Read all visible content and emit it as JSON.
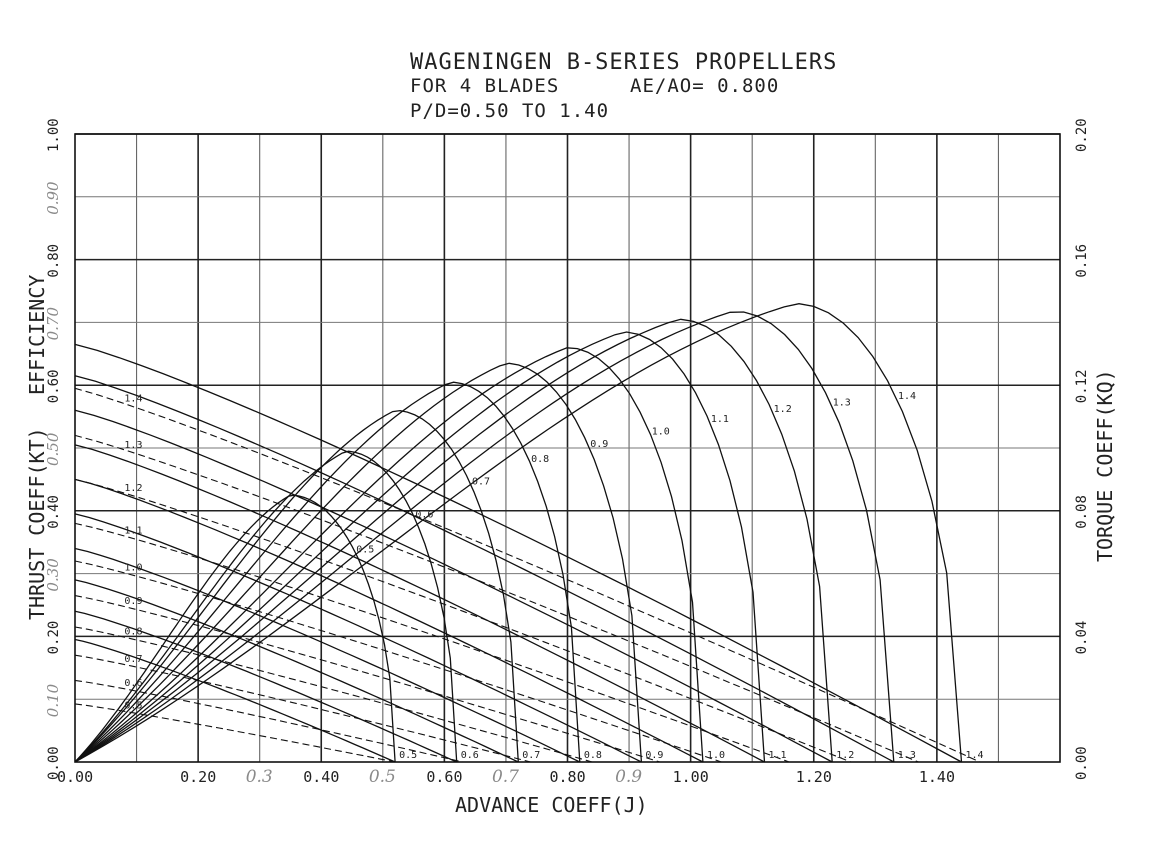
{
  "title": {
    "line1": "WAGENINGEN B-SERIES PROPELLERS",
    "line2_left": "FOR 4 BLADES",
    "line2_right": "AE/AO= 0.800",
    "line3": "P/D=0.50 TO 1.40"
  },
  "axes": {
    "x_label": "ADVANCE COEFF(J)",
    "y_left_label_lower": "THRUST COEFF(KT)",
    "y_left_label_upper": "EFFICIENCY",
    "y_right_label": "TORQUE COEFF(KQ)",
    "x_ticks": [
      "0.00",
      "0.20",
      "0.40",
      "0.60",
      "0.80",
      "1.00",
      "1.20",
      "1.40"
    ],
    "y_left_ticks": [
      "0.00",
      "0.20",
      "0.40",
      "0.60",
      "0.80",
      "1.00"
    ],
    "y_right_ticks": [
      "0.00",
      "0.04",
      "0.08",
      "0.12",
      "0.16",
      "0.20"
    ],
    "handwritten_x": [
      "0.3",
      "0.5",
      "0.7",
      "0.9"
    ],
    "handwritten_y": [
      "0.10",
      "0.30",
      "0.50",
      "0.70",
      "0.90"
    ]
  },
  "chart_data": {
    "type": "line",
    "title": "WAGENINGEN B-SERIES PROPELLERS",
    "xlabel": "ADVANCE COEFF(J)",
    "ylabel": "THRUST COEFF(KT) / EFFICIENCY",
    "y2label": "TORQUE COEFF(KQ)",
    "xlim": [
      0,
      1.6
    ],
    "ylim": [
      0,
      1.0
    ],
    "y2lim": [
      0,
      0.2
    ],
    "grid": true,
    "pitch_ratios": [
      0.5,
      0.6,
      0.7,
      0.8,
      0.9,
      1.0,
      1.1,
      1.2,
      1.3,
      1.4
    ],
    "pitch_labels": [
      "0.5",
      "0.6",
      "0.7",
      "0.8",
      "0.9",
      "1.0",
      "1.1",
      "1.2",
      "1.3",
      "1.4"
    ],
    "kt": [
      {
        "pd": 0.5,
        "kt0": 0.195,
        "j_zero": 0.52
      },
      {
        "pd": 0.6,
        "kt0": 0.24,
        "j_zero": 0.62
      },
      {
        "pd": 0.7,
        "kt0": 0.29,
        "j_zero": 0.72
      },
      {
        "pd": 0.8,
        "kt0": 0.34,
        "j_zero": 0.82
      },
      {
        "pd": 0.9,
        "kt0": 0.395,
        "j_zero": 0.92
      },
      {
        "pd": 1.0,
        "kt0": 0.45,
        "j_zero": 1.02
      },
      {
        "pd": 1.1,
        "kt0": 0.505,
        "j_zero": 1.12
      },
      {
        "pd": 1.2,
        "kt0": 0.56,
        "j_zero": 1.23
      },
      {
        "pd": 1.3,
        "kt0": 0.615,
        "j_zero": 1.33
      },
      {
        "pd": 1.4,
        "kt0": 0.665,
        "j_zero": 1.44
      }
    ],
    "kq": [
      {
        "pd": 0.5,
        "kq0": 0.0185,
        "j_zero": 0.52
      },
      {
        "pd": 0.6,
        "kq0": 0.026,
        "j_zero": 0.63
      },
      {
        "pd": 0.7,
        "kq0": 0.034,
        "j_zero": 0.74
      },
      {
        "pd": 0.8,
        "kq0": 0.043,
        "j_zero": 0.84
      },
      {
        "pd": 0.9,
        "kq0": 0.053,
        "j_zero": 0.95
      },
      {
        "pd": 1.0,
        "kq0": 0.064,
        "j_zero": 1.05
      },
      {
        "pd": 1.1,
        "kq0": 0.076,
        "j_zero": 1.16
      },
      {
        "pd": 1.2,
        "kq0": 0.09,
        "j_zero": 1.26
      },
      {
        "pd": 1.3,
        "kq0": 0.104,
        "j_zero": 1.37
      },
      {
        "pd": 1.4,
        "kq0": 0.119,
        "j_zero": 1.47
      }
    ],
    "efficiency": [
      {
        "pd": 0.5,
        "eta_max": 0.425,
        "j_opt": 0.35,
        "j_zero": 0.52
      },
      {
        "pd": 0.6,
        "eta_max": 0.495,
        "j_opt": 0.44,
        "j_zero": 0.62
      },
      {
        "pd": 0.7,
        "eta_max": 0.56,
        "j_opt": 0.52,
        "j_zero": 0.72
      },
      {
        "pd": 0.8,
        "eta_max": 0.605,
        "j_opt": 0.61,
        "j_zero": 0.82
      },
      {
        "pd": 0.9,
        "eta_max": 0.635,
        "j_opt": 0.7,
        "j_zero": 0.92
      },
      {
        "pd": 1.0,
        "eta_max": 0.66,
        "j_opt": 0.8,
        "j_zero": 1.02
      },
      {
        "pd": 1.1,
        "eta_max": 0.685,
        "j_opt": 0.89,
        "j_zero": 1.12
      },
      {
        "pd": 1.2,
        "eta_max": 0.705,
        "j_opt": 0.98,
        "j_zero": 1.23
      },
      {
        "pd": 1.3,
        "eta_max": 0.718,
        "j_opt": 1.07,
        "j_zero": 1.33
      },
      {
        "pd": 1.4,
        "eta_max": 0.73,
        "j_opt": 1.17,
        "j_zero": 1.44
      }
    ]
  }
}
